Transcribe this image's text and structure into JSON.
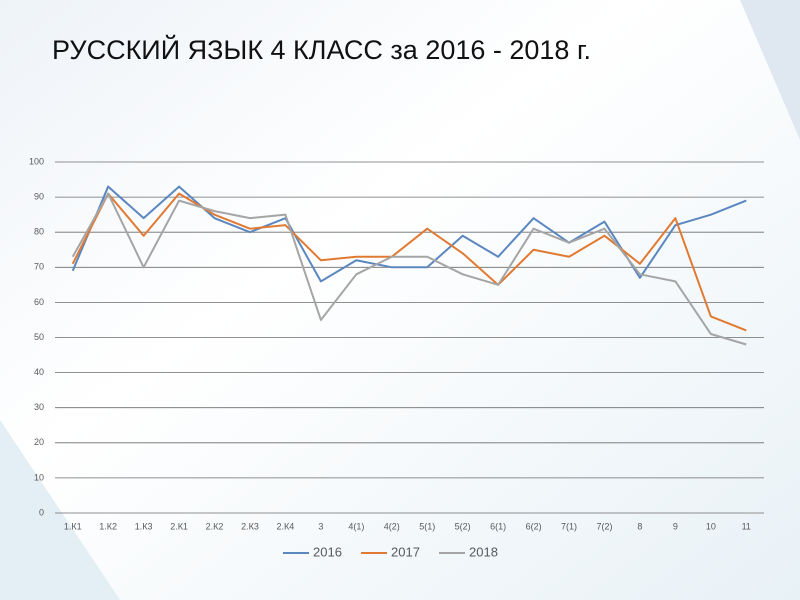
{
  "chart_data": {
    "type": "line",
    "title": "РУССКИЙ ЯЗЫК 4 КЛАСС за 2016 - 2018 г.",
    "categories": [
      "1.К1",
      "1.К2",
      "1.К3",
      "2.К1",
      "2.К2",
      "2.К3",
      "2.К4",
      "3",
      "4(1)",
      "4(2)",
      "5(1)",
      "5(2)",
      "6(1)",
      "6(2)",
      "7(1)",
      "7(2)",
      "8",
      "9",
      "10",
      "11"
    ],
    "series": [
      {
        "name": "2016",
        "color": "#5b87c0",
        "values": [
          69,
          93,
          84,
          93,
          84,
          80,
          84,
          66,
          72,
          70,
          70,
          79,
          73,
          84,
          77,
          83,
          67,
          82,
          85,
          89
        ]
      },
      {
        "name": "2017",
        "color": "#e07a32",
        "values": [
          71,
          91,
          79,
          91,
          85,
          81,
          82,
          72,
          73,
          73,
          81,
          74,
          65,
          75,
          73,
          79,
          71,
          84,
          56,
          52
        ]
      },
      {
        "name": "2018",
        "color": "#a5a5a5",
        "values": [
          73,
          91,
          70,
          89,
          86,
          84,
          85,
          55,
          68,
          73,
          73,
          68,
          65,
          81,
          77,
          81,
          68,
          66,
          51,
          48
        ]
      }
    ],
    "ylim": [
      0,
      100
    ],
    "yticks": [
      0,
      10,
      20,
      30,
      40,
      50,
      60,
      70,
      80,
      90,
      100
    ],
    "grid": true,
    "legend": "bottom"
  }
}
